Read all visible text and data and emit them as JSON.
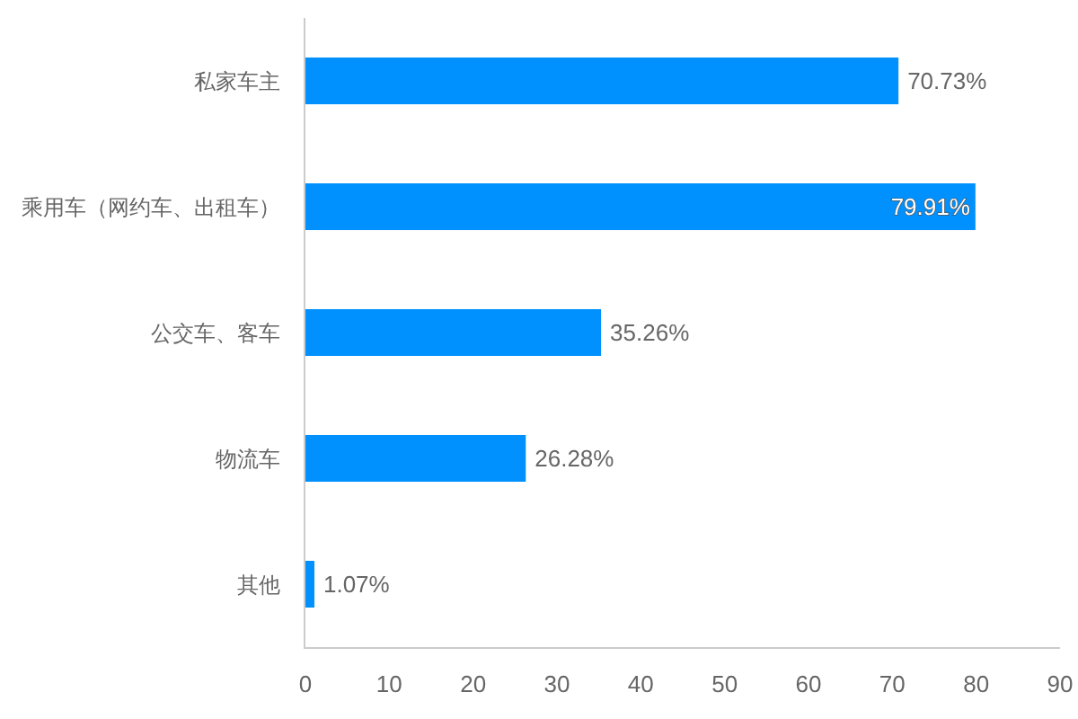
{
  "chart_data": {
    "type": "bar",
    "orientation": "horizontal",
    "categories": [
      "私家车主",
      "乘用车（网约车、出租车）",
      "公交车、客车",
      "物流车",
      "其他"
    ],
    "values": [
      70.73,
      79.91,
      35.26,
      26.28,
      1.07
    ],
    "value_labels": [
      "70.73%",
      "79.91%",
      "35.26%",
      "26.28%",
      "1.07%"
    ],
    "color": "#0091ff",
    "xlim": [
      0,
      90
    ],
    "xticks": [
      0,
      10,
      20,
      30,
      40,
      50,
      60,
      70,
      80,
      90
    ],
    "grid": false
  }
}
